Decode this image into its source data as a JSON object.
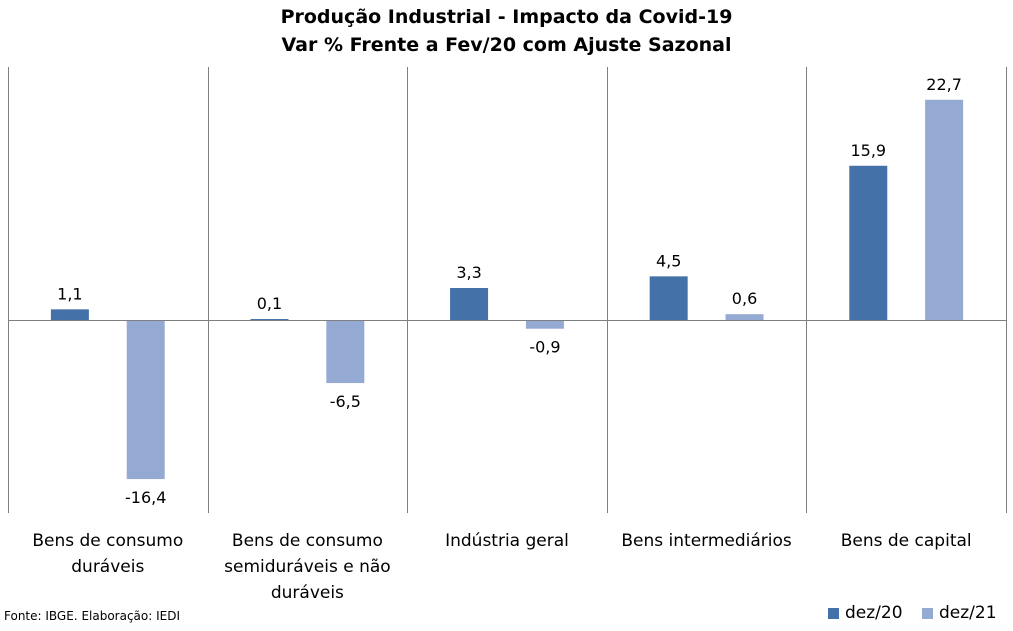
{
  "chart_data": {
    "type": "bar",
    "title": "Produção Industrial - Impacto da Covid-19",
    "subtitle": "Var % Frente a Fev/20 com Ajuste Sazonal",
    "categories": [
      "Bens de consumo duráveis",
      "Bens de consumo semiduráveis e não duráveis",
      "Indústria geral",
      "Bens intermediários",
      "Bens de capital"
    ],
    "series": [
      {
        "name": "dez/20",
        "color": "#4472A8",
        "values": [
          1.1,
          0.1,
          3.3,
          4.5,
          15.9
        ],
        "labels": [
          "1,1",
          "0,1",
          "3,3",
          "4,5",
          "15,9"
        ]
      },
      {
        "name": "dez/21",
        "color": "#95AAD3",
        "values": [
          -16.4,
          -6.5,
          -0.9,
          0.6,
          22.7
        ],
        "labels": [
          "-16,4",
          "-6,5",
          "-0,9",
          "0,6",
          "22,7"
        ]
      }
    ],
    "ylim": [
      -20,
      26
    ],
    "grid": false,
    "legend": "bottom-right"
  },
  "source": "Fonte: IBGE. Elaboração: IEDI"
}
